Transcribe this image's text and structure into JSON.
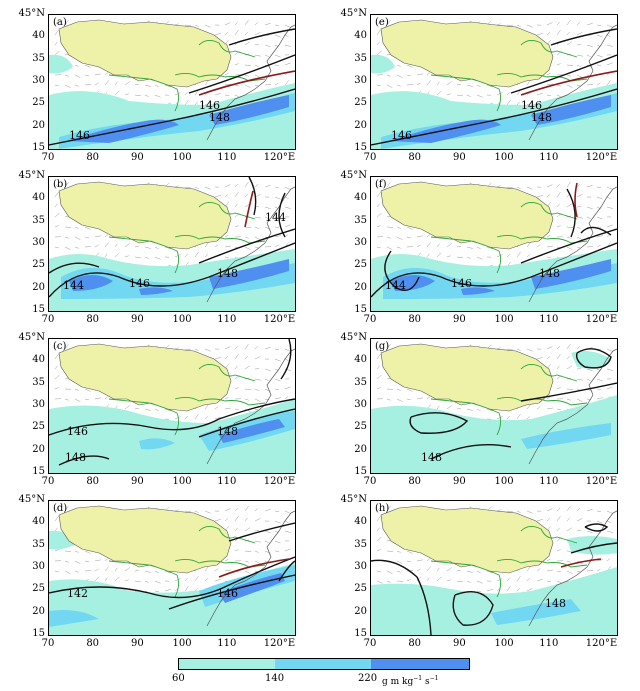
{
  "map": {
    "axis_labels": {
      "lat_top": "45°N",
      "lats": [
        "40",
        "35",
        "30",
        "25",
        "20",
        "15"
      ],
      "lons": [
        "70",
        "80",
        "90",
        "100",
        "110",
        "120°E"
      ]
    },
    "colors": {
      "plateau": "#eef2a8",
      "shade_low": "#a6f0e2",
      "shade_mid": "#72d8f2",
      "shade_high": "#4f8ff0",
      "river": "#2fa63a",
      "contour": "#111111",
      "contour_red": "#8b1a1a"
    },
    "panels": [
      {
        "label": "(a)",
        "contour_labels": [
          "146",
          "146",
          "148"
        ]
      },
      {
        "label": "(e)",
        "contour_labels": [
          "146",
          "146",
          "148"
        ]
      },
      {
        "label": "(b)",
        "contour_labels": [
          "144",
          "146",
          "148",
          "144"
        ]
      },
      {
        "label": "(f)",
        "contour_labels": [
          "144",
          "146",
          "148"
        ]
      },
      {
        "label": "(c)",
        "contour_labels": [
          "146",
          "148",
          "148"
        ]
      },
      {
        "label": "(g)",
        "contour_labels": [
          "148"
        ]
      },
      {
        "label": "(d)",
        "contour_labels": [
          "142",
          "146"
        ]
      },
      {
        "label": "(h)",
        "contour_labels": [
          "148"
        ]
      }
    ],
    "colorbar": {
      "ticks": [
        "60",
        "140",
        "220"
      ],
      "unit": "g m kg⁻¹ s⁻¹",
      "colors": [
        "#a6f0e2",
        "#72d8f2",
        "#4f8ff0"
      ]
    }
  }
}
